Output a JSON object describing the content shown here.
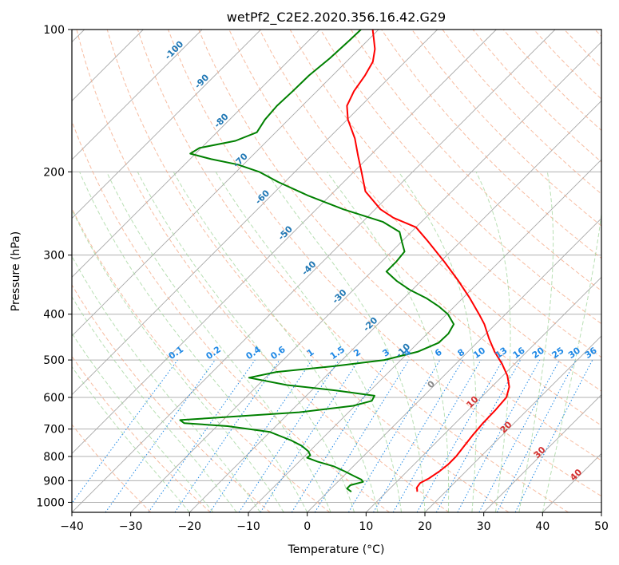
{
  "chart_data": {
    "type": "line",
    "subtype": "skew-T log-P",
    "title": "wetPf2_C2E2.2020.356.16.42.G29",
    "xlabel": "Temperature (°C)",
    "ylabel": "Pressure (hPa)",
    "xlim": [
      -40,
      50
    ],
    "ylim": [
      1050,
      100
    ],
    "y_scale": "log",
    "x_ticks": [
      -40,
      -30,
      -20,
      -10,
      0,
      10,
      20,
      30,
      40,
      50
    ],
    "x_tick_labels": [
      "−40",
      "−30",
      "−20",
      "−10",
      "0",
      "10",
      "20",
      "30",
      "40",
      "50"
    ],
    "y_ticks": [
      100,
      200,
      300,
      400,
      500,
      600,
      700,
      800,
      900,
      1000
    ],
    "y_tick_labels": [
      "100",
      "200",
      "300",
      "400",
      "500",
      "600",
      "700",
      "800",
      "900",
      "1000"
    ],
    "grid": true,
    "isotherm_labels": [
      {
        "text": "-100",
        "p": 110
      },
      {
        "text": "-90",
        "p": 128
      },
      {
        "text": "-80",
        "p": 155
      },
      {
        "text": "-70",
        "p": 188
      },
      {
        "text": "-60",
        "p": 225
      },
      {
        "text": "-50",
        "p": 268
      },
      {
        "text": "-40",
        "p": 318
      },
      {
        "text": "-30",
        "p": 365
      },
      {
        "text": "-20",
        "p": 418
      },
      {
        "text": "-10",
        "p": 475
      }
    ],
    "mixing_ratio_labels": [
      "0.1",
      "0.2",
      "0.4",
      "0.6",
      "1",
      "1.5",
      "2",
      "3",
      "4",
      "6",
      "8",
      "10",
      "13",
      "16",
      "20",
      "25",
      "30",
      "36"
    ],
    "wet_bulb_labels": [
      {
        "text": "0",
        "color": "#888888"
      },
      {
        "text": "10",
        "color": "#d32f2f"
      },
      {
        "text": "20",
        "color": "#d32f2f"
      },
      {
        "text": "30",
        "color": "#d32f2f"
      },
      {
        "text": "40",
        "color": "#d32f2f"
      }
    ],
    "series": [
      {
        "name": "temperature",
        "color": "#ff0000",
        "points": [
          [
            950,
            15.2
          ],
          [
            930,
            14.4
          ],
          [
            910,
            14.2
          ],
          [
            890,
            14.9
          ],
          [
            860,
            15.5
          ],
          [
            830,
            15.8
          ],
          [
            800,
            15.8
          ],
          [
            760,
            15.4
          ],
          [
            720,
            15.0
          ],
          [
            680,
            14.7
          ],
          [
            640,
            14.6
          ],
          [
            600,
            14.3
          ],
          [
            570,
            13.0
          ],
          [
            540,
            10.8
          ],
          [
            510,
            7.9
          ],
          [
            480,
            4.5
          ],
          [
            450,
            1.3
          ],
          [
            420,
            -1.9
          ],
          [
            400,
            -4.5
          ],
          [
            370,
            -8.8
          ],
          [
            340,
            -13.7
          ],
          [
            310,
            -19.3
          ],
          [
            280,
            -25.7
          ],
          [
            262,
            -30.0
          ],
          [
            250,
            -35.5
          ],
          [
            240,
            -39.1
          ],
          [
            220,
            -44.7
          ],
          [
            200,
            -48.7
          ],
          [
            185,
            -52.0
          ],
          [
            170,
            -55.5
          ],
          [
            155,
            -59.9
          ],
          [
            145,
            -62.4
          ],
          [
            135,
            -63.7
          ],
          [
            125,
            -64.5
          ],
          [
            117,
            -65.5
          ],
          [
            110,
            -67.3
          ],
          [
            105,
            -69.1
          ],
          [
            100,
            -71.0
          ]
        ]
      },
      {
        "name": "dewpoint",
        "color": "#008000",
        "points": [
          [
            950,
            4.0
          ],
          [
            935,
            2.7
          ],
          [
            920,
            2.7
          ],
          [
            905,
            4.3
          ],
          [
            895,
            3.6
          ],
          [
            880,
            1.8
          ],
          [
            860,
            -0.6
          ],
          [
            840,
            -3.2
          ],
          [
            820,
            -6.9
          ],
          [
            805,
            -9.3
          ],
          [
            795,
            -9.2
          ],
          [
            780,
            -10.2
          ],
          [
            760,
            -12.2
          ],
          [
            740,
            -14.9
          ],
          [
            710,
            -20.0
          ],
          [
            690,
            -28.2
          ],
          [
            680,
            -36.1
          ],
          [
            670,
            -37.3
          ],
          [
            660,
            -29.8
          ],
          [
            645,
            -18.4
          ],
          [
            625,
            -10.3
          ],
          [
            610,
            -8.0
          ],
          [
            595,
            -8.4
          ],
          [
            580,
            -15.9
          ],
          [
            565,
            -25.1
          ],
          [
            545,
            -32.8
          ],
          [
            530,
            -29.1
          ],
          [
            515,
            -20.2
          ],
          [
            500,
            -12.8
          ],
          [
            480,
            -8.5
          ],
          [
            460,
            -6.5
          ],
          [
            440,
            -6.4
          ],
          [
            420,
            -7.1
          ],
          [
            400,
            -9.8
          ],
          [
            385,
            -12.7
          ],
          [
            370,
            -16.2
          ],
          [
            355,
            -20.5
          ],
          [
            340,
            -24.2
          ],
          [
            325,
            -27.5
          ],
          [
            310,
            -27.5
          ],
          [
            295,
            -27.8
          ],
          [
            282,
            -29.8
          ],
          [
            268,
            -32.0
          ],
          [
            255,
            -36.6
          ],
          [
            240,
            -45.4
          ],
          [
            225,
            -53.5
          ],
          [
            210,
            -61.2
          ],
          [
            200,
            -66.1
          ],
          [
            193,
            -71.0
          ],
          [
            188,
            -76.4
          ],
          [
            183,
            -80.9
          ],
          [
            178,
            -80.3
          ],
          [
            172,
            -75.4
          ],
          [
            165,
            -73.2
          ],
          [
            155,
            -74.0
          ],
          [
            145,
            -74.3
          ],
          [
            135,
            -74.1
          ],
          [
            125,
            -74.0
          ],
          [
            115,
            -73.4
          ],
          [
            105,
            -73.1
          ],
          [
            100,
            -73.0
          ]
        ]
      }
    ]
  }
}
